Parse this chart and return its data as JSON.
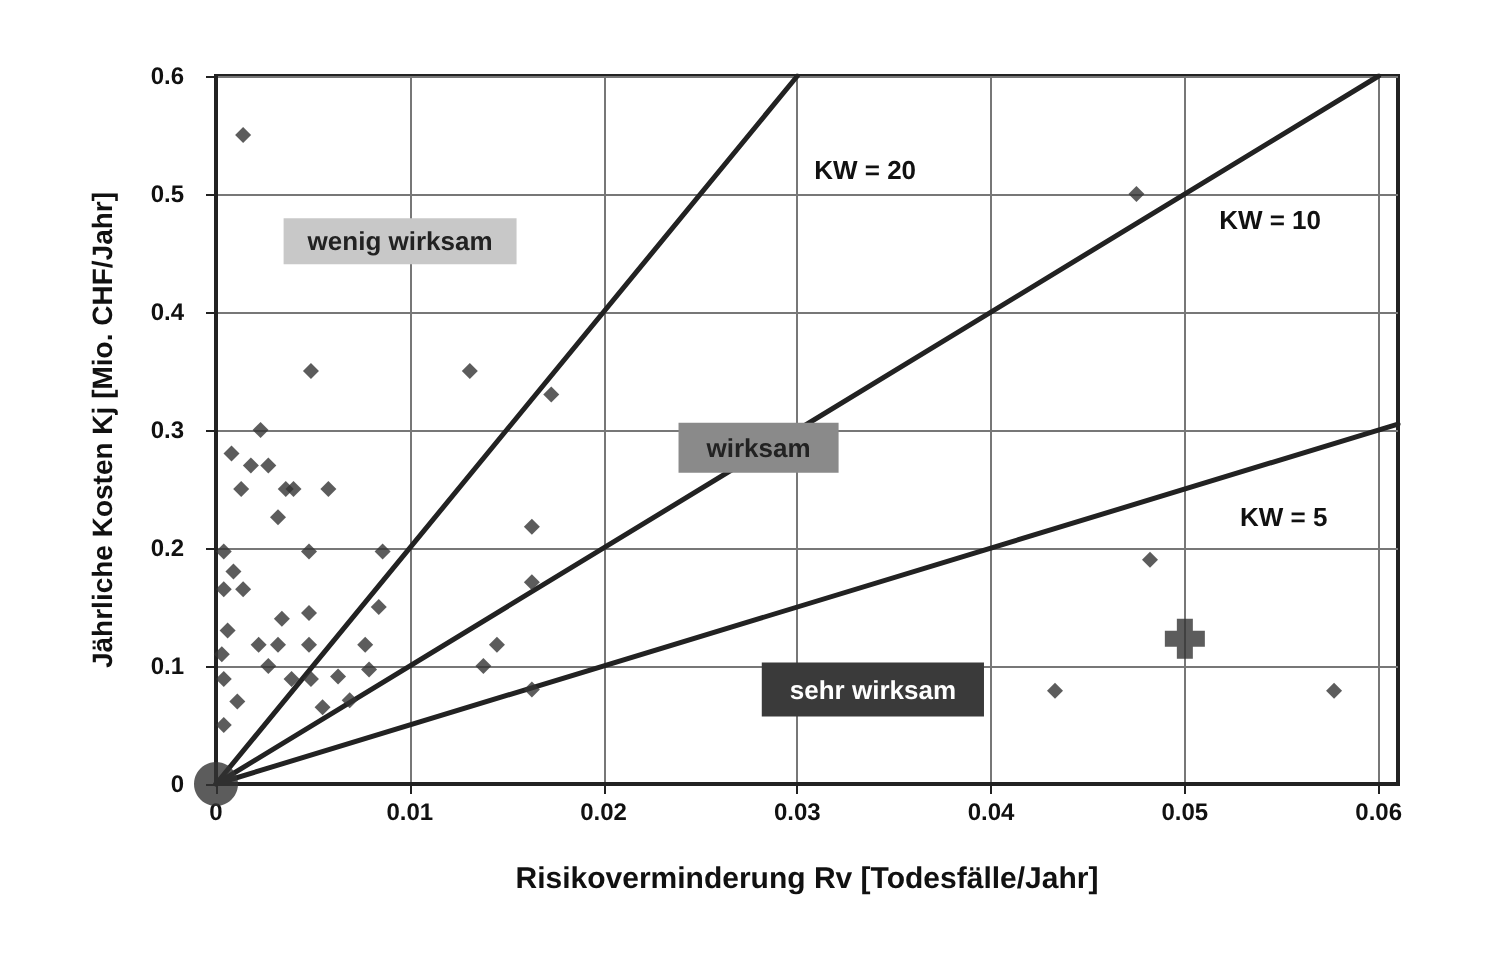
{
  "chart_data": {
    "type": "scatter",
    "xlabel": "Risikoverminderung Rv [Todesfälle/Jahr]",
    "ylabel": "Jährliche Kosten Kj [Mio. CHF/Jahr]",
    "xlim": [
      0,
      0.061
    ],
    "xticks": [
      0,
      0.01,
      0.02,
      0.03,
      0.04,
      0.05,
      0.06
    ],
    "ylim": [
      0,
      0.6
    ],
    "yticks": [
      0,
      0.1,
      0.2,
      0.3,
      0.4,
      0.5,
      0.6
    ],
    "grid": true,
    "series": [
      {
        "marker": "diamond",
        "color": "#333333",
        "x": [
          0.0014,
          0.0049,
          0.0131,
          0.0023,
          0.0008,
          0.0018,
          0.0027,
          0.0036,
          0.004,
          0.0013,
          0.0058,
          0.0032,
          0.0048,
          0.0086,
          0.0004,
          0.0009,
          0.0004,
          0.0014,
          0.0034,
          0.0048,
          0.0084,
          0.0077,
          0.0022,
          0.0032,
          0.0048,
          0.0079,
          0.0063,
          0.0049,
          0.0039,
          0.0027,
          0.0004,
          0.0006,
          0.0003,
          0.0011,
          0.0004,
          0.0069,
          0.0055,
          0.0163,
          0.0163,
          0.0145,
          0.0138,
          0.0163,
          0.0173,
          0.0475,
          0.0482,
          0.0433,
          0.0577
        ],
        "values": [
          0.55,
          0.35,
          0.35,
          0.3,
          0.28,
          0.27,
          0.27,
          0.25,
          0.25,
          0.25,
          0.25,
          0.226,
          0.197,
          0.197,
          0.197,
          0.18,
          0.165,
          0.165,
          0.14,
          0.145,
          0.15,
          0.118,
          0.118,
          0.118,
          0.118,
          0.097,
          0.091,
          0.089,
          0.089,
          0.1,
          0.089,
          0.13,
          0.11,
          0.07,
          0.05,
          0.071,
          0.065,
          0.218,
          0.171,
          0.118,
          0.1,
          0.08,
          0.33,
          0.5,
          0.19,
          0.079,
          0.079
        ]
      },
      {
        "marker": "circle",
        "color": "#333333",
        "x": [
          0
        ],
        "values": [
          0
        ]
      },
      {
        "marker": "cross",
        "color": "#333333",
        "x": [
          0.05
        ],
        "values": [
          0.123
        ]
      },
      {
        "type": "line",
        "marker": "none",
        "line_style": "solid",
        "color": "#222222",
        "x": [
          0,
          0.03
        ],
        "values": [
          0,
          0.6
        ]
      },
      {
        "type": "line",
        "marker": "none",
        "line_style": "solid",
        "color": "#222222",
        "x": [
          0,
          0.06
        ],
        "values": [
          0,
          0.6
        ]
      },
      {
        "type": "line",
        "marker": "none",
        "line_style": "solid",
        "color": "#222222",
        "x": [
          0,
          0.061
        ],
        "values": [
          0,
          0.305
        ]
      }
    ],
    "annotations": [
      "KW = 20",
      "KW = 10",
      "KW = 5",
      "wenig wirksam",
      "wirksam",
      "sehr wirksam"
    ]
  }
}
